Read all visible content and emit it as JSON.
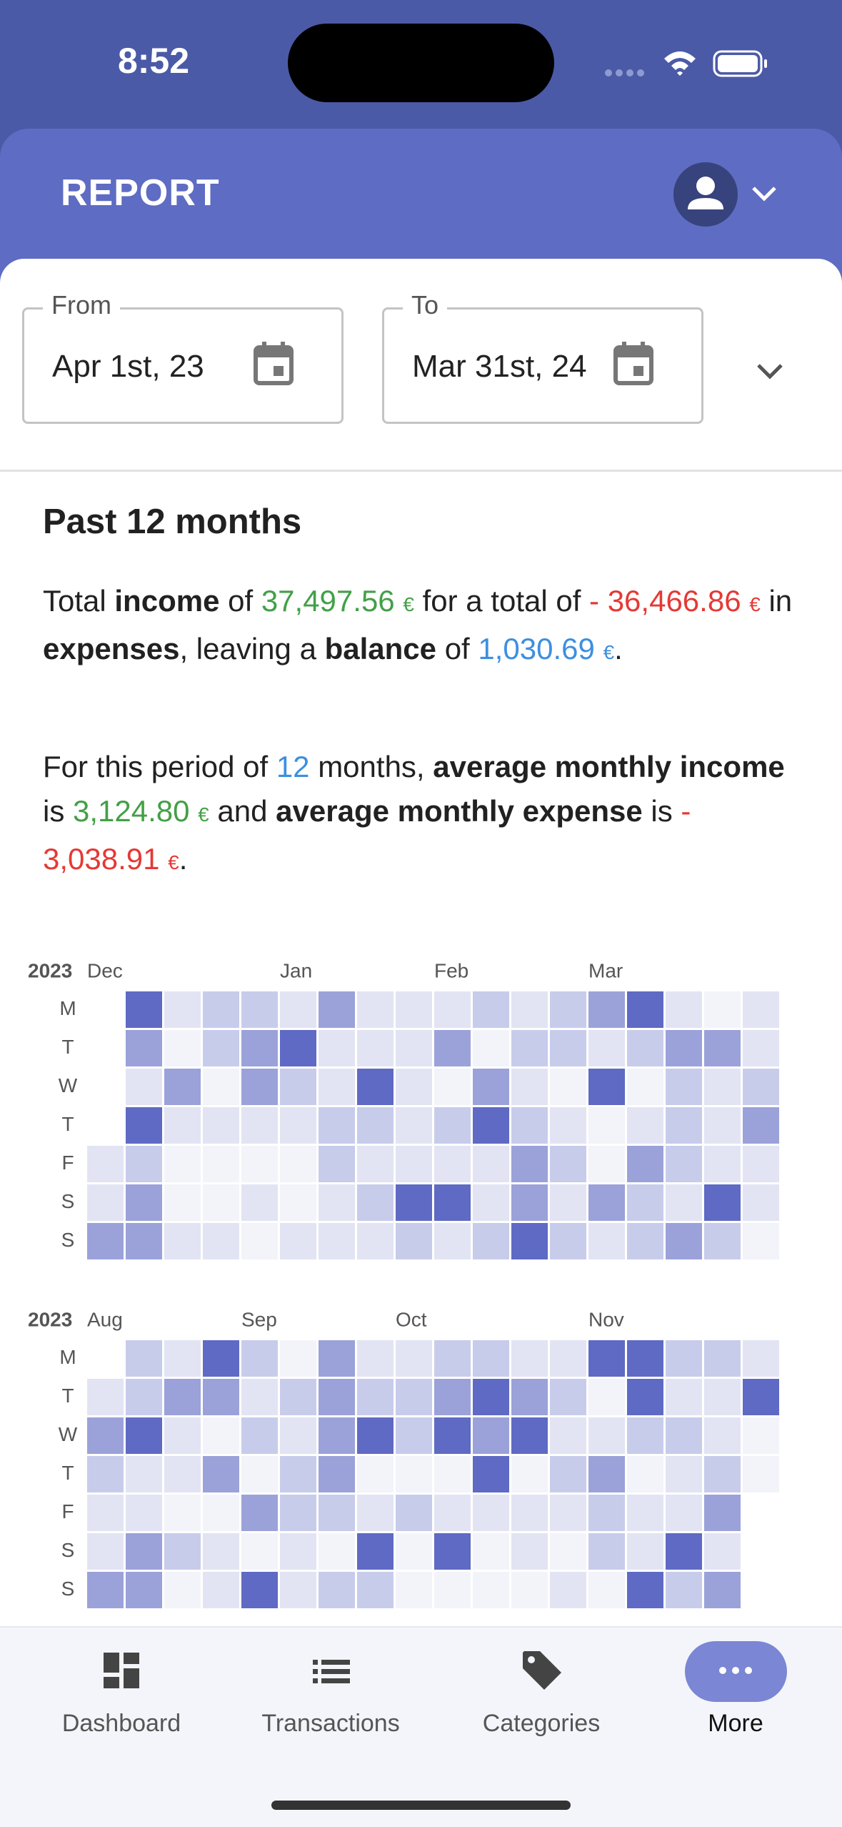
{
  "status_bar": {
    "time": "8:52"
  },
  "header": {
    "title": "REPORT"
  },
  "date_range": {
    "from": {
      "label": "From",
      "value": "Apr 1st, 23"
    },
    "to": {
      "label": "To",
      "value": "Mar 31st, 24"
    }
  },
  "summary": {
    "title": "Past 12 months",
    "paragraph1": [
      {
        "text": "Total ",
        "style": "plain"
      },
      {
        "text": "income",
        "style": "bold"
      },
      {
        "text": " of ",
        "style": "plain"
      },
      {
        "text": "37,497.56 ",
        "style": "income"
      },
      {
        "text": "€",
        "style": "income unit"
      },
      {
        "text": " for a total of ",
        "style": "plain"
      },
      {
        "text": "- 36,466.86 ",
        "style": "expense"
      },
      {
        "text": "€",
        "style": "expense unit"
      },
      {
        "text": " in ",
        "style": "plain"
      },
      {
        "text": "expenses",
        "style": "bold"
      },
      {
        "text": ", leaving a ",
        "style": "plain"
      },
      {
        "text": "balance",
        "style": "bold"
      },
      {
        "text": " of ",
        "style": "plain"
      },
      {
        "text": "1,030.69 ",
        "style": "balance"
      },
      {
        "text": "€",
        "style": "balance unit"
      },
      {
        "text": ".",
        "style": "plain"
      }
    ],
    "paragraph2": [
      {
        "text": "For this period of ",
        "style": "plain"
      },
      {
        "text": "12",
        "style": "count"
      },
      {
        "text": " months, ",
        "style": "plain"
      },
      {
        "text": "average monthly income",
        "style": "bold"
      },
      {
        "text": " is ",
        "style": "plain"
      },
      {
        "text": "3,124.80 ",
        "style": "income"
      },
      {
        "text": "€",
        "style": "income unit"
      },
      {
        "text": " and ",
        "style": "plain"
      },
      {
        "text": "average monthly expense",
        "style": "bold"
      },
      {
        "text": " is ",
        "style": "plain"
      },
      {
        "text": "- 3,038.91 ",
        "style": "expense"
      },
      {
        "text": "€",
        "style": "expense unit"
      },
      {
        "text": ".",
        "style": "plain"
      }
    ]
  },
  "heatmaps": [
    {
      "year": "2023",
      "months": [
        "Dec",
        null,
        null,
        null,
        null,
        "Jan",
        null,
        null,
        null,
        "Feb",
        null,
        null,
        null,
        "Mar",
        null,
        null,
        null,
        null
      ],
      "weekdays": [
        "M",
        "T",
        "W",
        "T",
        "F",
        "S",
        "S"
      ],
      "levels": [
        [
          null,
          4,
          1,
          2,
          2,
          1,
          3,
          1,
          1,
          1,
          2,
          1,
          2,
          3,
          4,
          1,
          0,
          1
        ],
        [
          null,
          3,
          0,
          2,
          3,
          4,
          1,
          1,
          1,
          3,
          0,
          2,
          2,
          1,
          2,
          3,
          3,
          1
        ],
        [
          null,
          1,
          3,
          0,
          3,
          2,
          1,
          4,
          1,
          0,
          3,
          1,
          0,
          4,
          0,
          2,
          1,
          2
        ],
        [
          null,
          4,
          1,
          1,
          1,
          1,
          2,
          2,
          1,
          2,
          4,
          2,
          1,
          0,
          1,
          2,
          1,
          3
        ],
        [
          1,
          2,
          0,
          0,
          0,
          0,
          2,
          1,
          1,
          1,
          1,
          3,
          2,
          0,
          3,
          2,
          1,
          1
        ],
        [
          1,
          3,
          0,
          0,
          1,
          0,
          1,
          2,
          4,
          4,
          1,
          3,
          1,
          3,
          2,
          1,
          4,
          1
        ],
        [
          3,
          3,
          1,
          1,
          0,
          1,
          1,
          1,
          2,
          1,
          2,
          4,
          2,
          1,
          2,
          3,
          2,
          0
        ]
      ]
    },
    {
      "year": "2023",
      "months": [
        "Aug",
        null,
        null,
        null,
        "Sep",
        null,
        null,
        null,
        "Oct",
        null,
        null,
        null,
        null,
        "Nov",
        null,
        null,
        null,
        null
      ],
      "weekdays": [
        "M",
        "T",
        "W",
        "T",
        "F",
        "S",
        "S"
      ],
      "levels": [
        [
          null,
          2,
          1,
          4,
          2,
          0,
          3,
          1,
          1,
          2,
          2,
          1,
          1,
          4,
          4,
          2,
          2,
          1
        ],
        [
          1,
          2,
          3,
          3,
          1,
          2,
          3,
          2,
          2,
          3,
          4,
          3,
          2,
          0,
          4,
          1,
          1,
          4
        ],
        [
          3,
          4,
          1,
          0,
          2,
          1,
          3,
          4,
          2,
          4,
          3,
          4,
          1,
          1,
          2,
          2,
          1,
          0
        ],
        [
          2,
          1,
          1,
          3,
          0,
          2,
          3,
          0,
          0,
          0,
          4,
          0,
          2,
          3,
          0,
          1,
          2,
          0
        ],
        [
          1,
          1,
          0,
          0,
          3,
          2,
          2,
          1,
          2,
          1,
          1,
          1,
          1,
          2,
          1,
          1,
          3,
          null
        ],
        [
          1,
          3,
          2,
          1,
          0,
          1,
          0,
          4,
          0,
          4,
          0,
          1,
          0,
          2,
          1,
          4,
          1,
          null
        ],
        [
          3,
          3,
          0,
          1,
          4,
          1,
          2,
          2,
          0,
          0,
          0,
          0,
          1,
          0,
          4,
          2,
          3,
          null
        ]
      ]
    }
  ],
  "nav": {
    "items": [
      "Dashboard",
      "Transactions",
      "Categories",
      "More"
    ]
  }
}
